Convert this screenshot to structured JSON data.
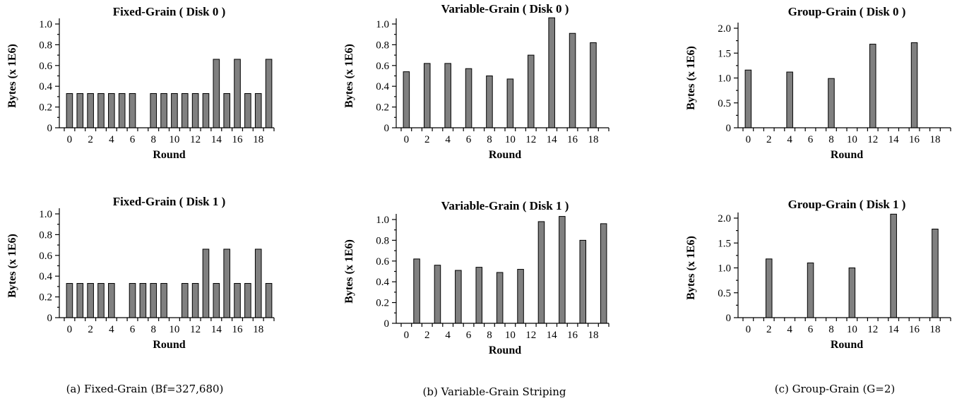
{
  "captions": [
    "(a) Fixed-Grain (Bf=327,680)",
    "(b) Variable-Grain Striping",
    "(c) Group-Grain (G=2)"
  ],
  "chart_data": [
    {
      "type": "bar",
      "title": "Fixed-Grain ( Disk 0 )",
      "xlabel": "Round",
      "ylabel": "Bytes (x 1E6)",
      "x": [
        0,
        1,
        2,
        3,
        4,
        5,
        6,
        7,
        8,
        9,
        10,
        11,
        12,
        13,
        14,
        15,
        16,
        17,
        18,
        19
      ],
      "values": [
        0.33,
        0.33,
        0.33,
        0.33,
        0.33,
        0.33,
        0.33,
        0,
        0.33,
        0.33,
        0.33,
        0.33,
        0.33,
        0.33,
        0.66,
        0.33,
        0.66,
        0.33,
        0.33,
        0.66
      ],
      "xticks": [
        "0",
        "2",
        "4",
        "6",
        "8",
        "10",
        "12",
        "14",
        "16",
        "18"
      ],
      "yticks": [
        "0",
        "0.2",
        "0.4",
        "0.6",
        "0.8",
        "1.0"
      ],
      "ylim": [
        0,
        1.0
      ],
      "grid": false
    },
    {
      "type": "bar",
      "title": "Variable-Grain ( Disk 0 )",
      "xlabel": "Round",
      "ylabel": "Bytes (x 1E6)",
      "x": [
        0,
        1,
        2,
        3,
        4,
        5,
        6,
        7,
        8,
        9,
        10,
        11,
        12,
        13,
        14,
        15,
        16,
        17,
        18,
        19
      ],
      "values": [
        0.54,
        0,
        0.62,
        0,
        0.62,
        0,
        0.57,
        0,
        0.5,
        0,
        0.47,
        0,
        0.7,
        0,
        1.06,
        0,
        0.91,
        0,
        0.82,
        0
      ],
      "xticks": [
        "0",
        "2",
        "4",
        "6",
        "8",
        "10",
        "12",
        "14",
        "16",
        "18"
      ],
      "yticks": [
        "0",
        "0.2",
        "0.4",
        "0.6",
        "0.8",
        "1.0"
      ],
      "ylim": [
        0,
        1.0
      ],
      "grid": false
    },
    {
      "type": "bar",
      "title": "Group-Grain ( Disk 0 )",
      "xlabel": "Round",
      "ylabel": "Bytes (x 1E6)",
      "x": [
        0,
        1,
        2,
        3,
        4,
        5,
        6,
        7,
        8,
        9,
        10,
        11,
        12,
        13,
        14,
        15,
        16,
        17,
        18,
        19
      ],
      "values": [
        1.16,
        0,
        0,
        0,
        1.12,
        0,
        0,
        0,
        0.99,
        0,
        0,
        0,
        1.68,
        0,
        0,
        0,
        1.71,
        0,
        0,
        0
      ],
      "xticks": [
        "0",
        "2",
        "4",
        "6",
        "8",
        "10",
        "12",
        "14",
        "16",
        "18"
      ],
      "yticks": [
        "0",
        "0.5",
        "1.0",
        "1.5",
        "2.0"
      ],
      "ylim": [
        0,
        2.0
      ],
      "grid": false
    },
    {
      "type": "bar",
      "title": "Fixed-Grain ( Disk 1 )",
      "xlabel": "Round",
      "ylabel": "Bytes (x 1E6)",
      "x": [
        0,
        1,
        2,
        3,
        4,
        5,
        6,
        7,
        8,
        9,
        10,
        11,
        12,
        13,
        14,
        15,
        16,
        17,
        18,
        19
      ],
      "values": [
        0.33,
        0.33,
        0.33,
        0.33,
        0.33,
        0,
        0.33,
        0.33,
        0.33,
        0.33,
        0,
        0.33,
        0.33,
        0.66,
        0.33,
        0.66,
        0.33,
        0.33,
        0.66,
        0.33
      ],
      "xticks": [
        "0",
        "2",
        "4",
        "6",
        "8",
        "10",
        "12",
        "14",
        "16",
        "18"
      ],
      "yticks": [
        "0",
        "0.2",
        "0.4",
        "0.6",
        "0.8",
        "1.0"
      ],
      "ylim": [
        0,
        1.0
      ],
      "grid": false
    },
    {
      "type": "bar",
      "title": "Variable-Grain ( Disk 1 )",
      "xlabel": "Round",
      "ylabel": "Bytes (x 1E6)",
      "x": [
        0,
        1,
        2,
        3,
        4,
        5,
        6,
        7,
        8,
        9,
        10,
        11,
        12,
        13,
        14,
        15,
        16,
        17,
        18,
        19
      ],
      "values": [
        0,
        0.62,
        0,
        0.56,
        0,
        0.51,
        0,
        0.54,
        0,
        0.49,
        0,
        0.52,
        0,
        0.98,
        0,
        1.03,
        0,
        0.8,
        0,
        0.96
      ],
      "xticks": [
        "0",
        "2",
        "4",
        "6",
        "8",
        "10",
        "12",
        "14",
        "16",
        "18"
      ],
      "yticks": [
        "0",
        "0.2",
        "0.4",
        "0.6",
        "0.8",
        "1.0"
      ],
      "ylim": [
        0,
        1.0
      ],
      "grid": false
    },
    {
      "type": "bar",
      "title": "Group-Grain ( Disk 1 )",
      "xlabel": "Round",
      "ylabel": "Bytes (x 1E6)",
      "x": [
        0,
        1,
        2,
        3,
        4,
        5,
        6,
        7,
        8,
        9,
        10,
        11,
        12,
        13,
        14,
        15,
        16,
        17,
        18,
        19
      ],
      "values": [
        0,
        0,
        1.18,
        0,
        0,
        0,
        1.1,
        0,
        0,
        0,
        1.0,
        0,
        0,
        0,
        2.08,
        0,
        0,
        0,
        1.78,
        0
      ],
      "xticks": [
        "0",
        "2",
        "4",
        "6",
        "8",
        "10",
        "12",
        "14",
        "16",
        "18"
      ],
      "yticks": [
        "0",
        "0.5",
        "1.0",
        "1.5",
        "2.0"
      ],
      "ylim": [
        0,
        2.0
      ],
      "grid": false
    }
  ]
}
